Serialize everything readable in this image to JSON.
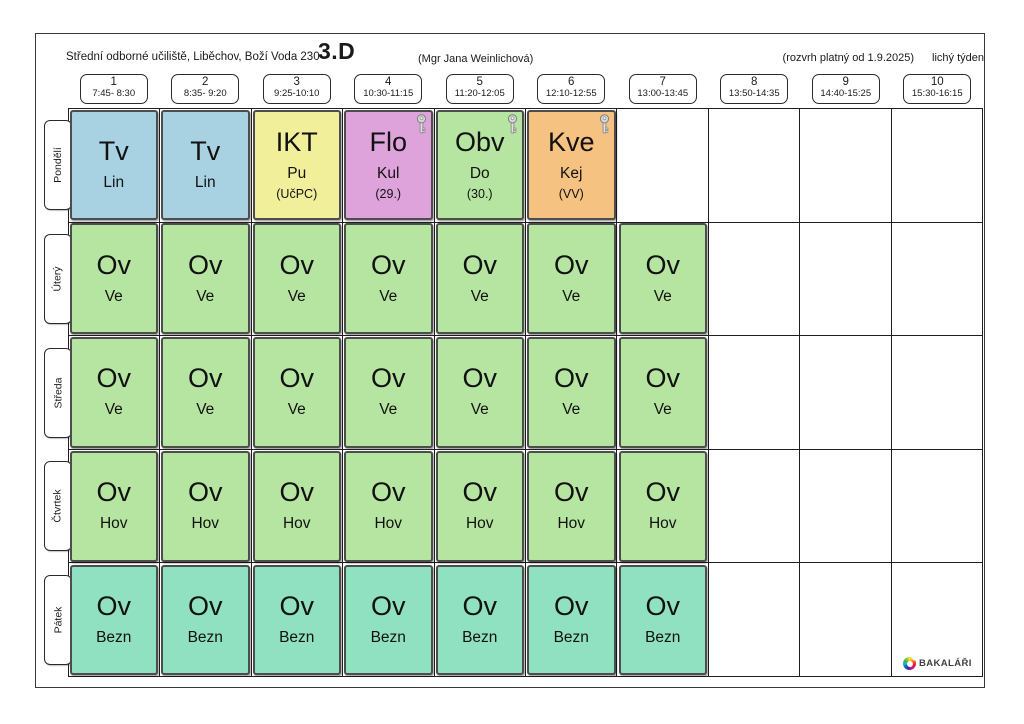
{
  "header": {
    "school": "Střední odborné učiliště, Liběchov, Boží Voda 230",
    "class_name": "3.D",
    "teacher": "(Mgr Jana Weinlichová)",
    "validity": "(rozvrh platný od 1.9.2025)",
    "week_parity": "lichý týden"
  },
  "periods": [
    {
      "num": "1",
      "time": "7:45- 8:30"
    },
    {
      "num": "2",
      "time": "8:35- 9:20"
    },
    {
      "num": "3",
      "time": "9:25-10:10"
    },
    {
      "num": "4",
      "time": "10:30-11:15"
    },
    {
      "num": "5",
      "time": "11:20-12:05"
    },
    {
      "num": "6",
      "time": "12:10-12:55"
    },
    {
      "num": "7",
      "time": "13:00-13:45"
    },
    {
      "num": "8",
      "time": "13:50-14:35"
    },
    {
      "num": "9",
      "time": "14:40-15:25"
    },
    {
      "num": "10",
      "time": "15:30-16:15"
    }
  ],
  "colors": {
    "blue": "#a8d2e2",
    "yellow": "#f2ef9b",
    "pink": "#dfa3dc",
    "green": "#b5e5a0",
    "orange": "#f5c282",
    "teal": "#90e0c2"
  },
  "icons": {
    "lesson_lock": "key-icon",
    "brand_logo": "bakalari-logo-icon"
  },
  "days": [
    {
      "label": "Pondělí",
      "lessons": [
        {
          "period": 0,
          "subject": "Tv",
          "teacher": "Lin",
          "room": "",
          "color": "blue",
          "locked": false
        },
        {
          "period": 1,
          "subject": "Tv",
          "teacher": "Lin",
          "room": "",
          "color": "blue",
          "locked": false
        },
        {
          "period": 2,
          "subject": "IKT",
          "teacher": "Pu",
          "room": "(UčPC)",
          "color": "yellow",
          "locked": false
        },
        {
          "period": 3,
          "subject": "Flo",
          "teacher": "Kul",
          "room": "(29.)",
          "color": "pink",
          "locked": true
        },
        {
          "period": 4,
          "subject": "Obv",
          "teacher": "Do",
          "room": "(30.)",
          "color": "green",
          "locked": true
        },
        {
          "period": 5,
          "subject": "Kve",
          "teacher": "Kej",
          "room": "(VV)",
          "color": "orange",
          "locked": true
        }
      ]
    },
    {
      "label": "Úterý",
      "lessons": [
        {
          "period": 0,
          "subject": "Ov",
          "teacher": "Ve",
          "room": "",
          "color": "green",
          "locked": false
        },
        {
          "period": 1,
          "subject": "Ov",
          "teacher": "Ve",
          "room": "",
          "color": "green",
          "locked": false
        },
        {
          "period": 2,
          "subject": "Ov",
          "teacher": "Ve",
          "room": "",
          "color": "green",
          "locked": false
        },
        {
          "period": 3,
          "subject": "Ov",
          "teacher": "Ve",
          "room": "",
          "color": "green",
          "locked": false
        },
        {
          "period": 4,
          "subject": "Ov",
          "teacher": "Ve",
          "room": "",
          "color": "green",
          "locked": false
        },
        {
          "period": 5,
          "subject": "Ov",
          "teacher": "Ve",
          "room": "",
          "color": "green",
          "locked": false
        },
        {
          "period": 6,
          "subject": "Ov",
          "teacher": "Ve",
          "room": "",
          "color": "green",
          "locked": false
        }
      ]
    },
    {
      "label": "Středa",
      "lessons": [
        {
          "period": 0,
          "subject": "Ov",
          "teacher": "Ve",
          "room": "",
          "color": "green",
          "locked": false
        },
        {
          "period": 1,
          "subject": "Ov",
          "teacher": "Ve",
          "room": "",
          "color": "green",
          "locked": false
        },
        {
          "period": 2,
          "subject": "Ov",
          "teacher": "Ve",
          "room": "",
          "color": "green",
          "locked": false
        },
        {
          "period": 3,
          "subject": "Ov",
          "teacher": "Ve",
          "room": "",
          "color": "green",
          "locked": false
        },
        {
          "period": 4,
          "subject": "Ov",
          "teacher": "Ve",
          "room": "",
          "color": "green",
          "locked": false
        },
        {
          "period": 5,
          "subject": "Ov",
          "teacher": "Ve",
          "room": "",
          "color": "green",
          "locked": false
        },
        {
          "period": 6,
          "subject": "Ov",
          "teacher": "Ve",
          "room": "",
          "color": "green",
          "locked": false
        }
      ]
    },
    {
      "label": "Čtvrtek",
      "lessons": [
        {
          "period": 0,
          "subject": "Ov",
          "teacher": "Hov",
          "room": "",
          "color": "green",
          "locked": false
        },
        {
          "period": 1,
          "subject": "Ov",
          "teacher": "Hov",
          "room": "",
          "color": "green",
          "locked": false
        },
        {
          "period": 2,
          "subject": "Ov",
          "teacher": "Hov",
          "room": "",
          "color": "green",
          "locked": false
        },
        {
          "period": 3,
          "subject": "Ov",
          "teacher": "Hov",
          "room": "",
          "color": "green",
          "locked": false
        },
        {
          "period": 4,
          "subject": "Ov",
          "teacher": "Hov",
          "room": "",
          "color": "green",
          "locked": false
        },
        {
          "period": 5,
          "subject": "Ov",
          "teacher": "Hov",
          "room": "",
          "color": "green",
          "locked": false
        },
        {
          "period": 6,
          "subject": "Ov",
          "teacher": "Hov",
          "room": "",
          "color": "green",
          "locked": false
        }
      ]
    },
    {
      "label": "Pátek",
      "lessons": [
        {
          "period": 0,
          "subject": "Ov",
          "teacher": "Bezn",
          "room": "",
          "color": "teal",
          "locked": false
        },
        {
          "period": 1,
          "subject": "Ov",
          "teacher": "Bezn",
          "room": "",
          "color": "teal",
          "locked": false
        },
        {
          "period": 2,
          "subject": "Ov",
          "teacher": "Bezn",
          "room": "",
          "color": "teal",
          "locked": false
        },
        {
          "period": 3,
          "subject": "Ov",
          "teacher": "Bezn",
          "room": "",
          "color": "teal",
          "locked": false
        },
        {
          "period": 4,
          "subject": "Ov",
          "teacher": "Bezn",
          "room": "",
          "color": "teal",
          "locked": false
        },
        {
          "period": 5,
          "subject": "Ov",
          "teacher": "Bezn",
          "room": "",
          "color": "teal",
          "locked": false
        },
        {
          "period": 6,
          "subject": "Ov",
          "teacher": "Bezn",
          "room": "",
          "color": "teal",
          "locked": false
        }
      ]
    }
  ],
  "footer": {
    "brand": "BAKALÁŘI"
  }
}
